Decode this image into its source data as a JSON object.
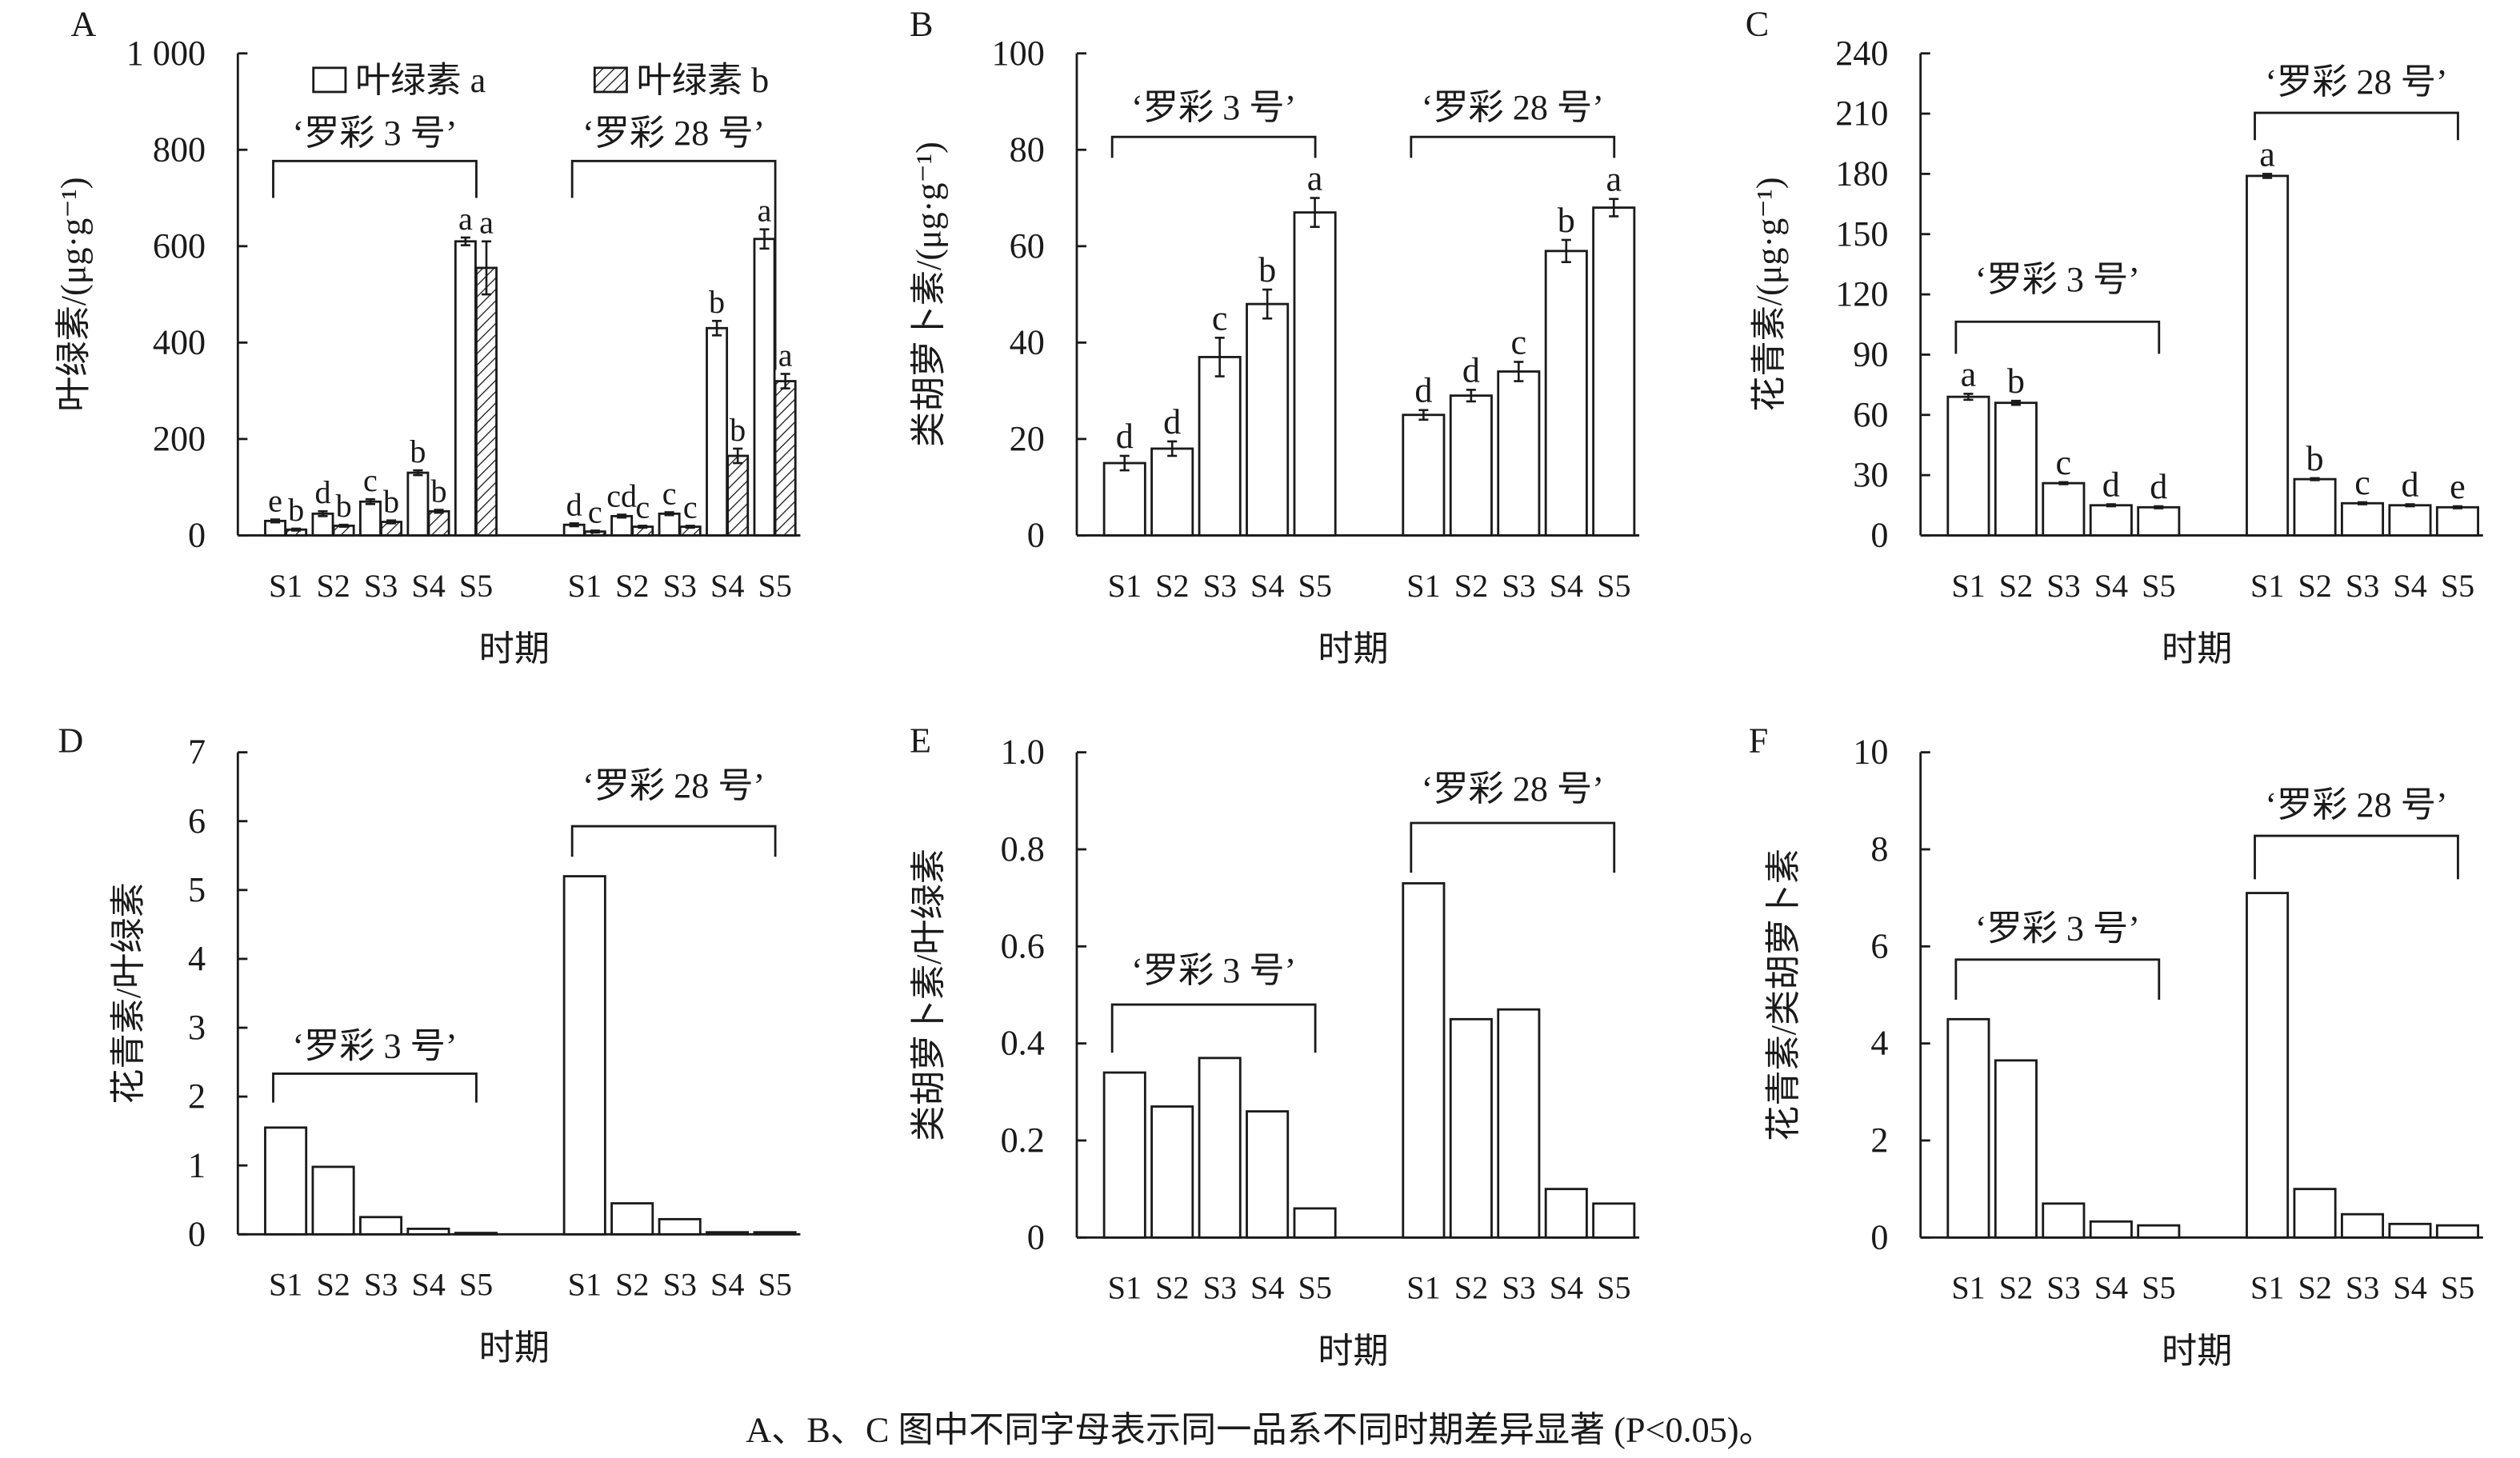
{
  "caption": "A、B、C 图中不同字母表示同一品系不同时期差异显著 (P<0.05)。",
  "chart_data": [
    {
      "panel": "A",
      "type": "bar",
      "ylabel": "叶绿素/(μg·g⁻¹)",
      "xlabel": "时期",
      "ylim": [
        0,
        1000
      ],
      "yticks": [
        0,
        200,
        400,
        600,
        800,
        1000
      ],
      "ytick_labels": [
        "0",
        "200",
        "400",
        "600",
        "800",
        "1 000"
      ],
      "categories": [
        "S1",
        "S2",
        "S3",
        "S4",
        "S5"
      ],
      "groups": [
        "‘罗彩 3 号’",
        "‘罗彩 28 号’"
      ],
      "legend": [
        "叶绿素 a",
        "叶绿素 b"
      ],
      "series": [
        {
          "name": "叶绿素 a",
          "values": [
            [
              30,
              45,
              70,
              130,
              610
            ],
            [
              22,
              40,
              45,
              430,
              615
            ]
          ],
          "errors": [
            [
              3,
              5,
              5,
              5,
              8
            ],
            [
              3,
              3,
              3,
              15,
              20
            ]
          ],
          "letters": [
            [
              "e",
              "d",
              "c",
              "b",
              "a"
            ],
            [
              "d",
              "cd",
              "c",
              "b",
              "a"
            ]
          ]
        },
        {
          "name": "叶绿素 b",
          "values": [
            [
              12,
              20,
              28,
              50,
              555
            ],
            [
              8,
              18,
              18,
              165,
              320
            ]
          ],
          "errors": [
            [
              2,
              2,
              3,
              3,
              55
            ],
            [
              2,
              2,
              2,
              15,
              15
            ]
          ],
          "letters": [
            [
              "b",
              "b",
              "b",
              "b",
              "a"
            ],
            [
              "c",
              "c",
              "c",
              "b",
              "a"
            ]
          ]
        }
      ]
    },
    {
      "panel": "B",
      "type": "bar",
      "ylabel": "类胡萝卜素/(μg·g⁻¹)",
      "xlabel": "时期",
      "ylim": [
        0,
        100
      ],
      "yticks": [
        0,
        20,
        40,
        60,
        80,
        100
      ],
      "ytick_labels": [
        "0",
        "20",
        "40",
        "60",
        "80",
        "100"
      ],
      "categories": [
        "S1",
        "S2",
        "S3",
        "S4",
        "S5"
      ],
      "groups": [
        "‘罗彩 3 号’",
        "‘罗彩 28 号’"
      ],
      "series": [
        {
          "name": "类胡萝卜素",
          "values": [
            [
              15,
              18,
              37,
              48,
              67
            ],
            [
              25,
              29,
              34,
              59,
              68
            ]
          ],
          "errors": [
            [
              1.5,
              1.5,
              4,
              3,
              3
            ],
            [
              1,
              1.2,
              2,
              2.3,
              1.8
            ]
          ],
          "letters": [
            [
              "d",
              "d",
              "c",
              "b",
              "a"
            ],
            [
              "d",
              "d",
              "c",
              "b",
              "a"
            ]
          ]
        }
      ]
    },
    {
      "panel": "C",
      "type": "bar",
      "ylabel": "花青素/(μg·g⁻¹)",
      "xlabel": "时期",
      "ylim": [
        0,
        240
      ],
      "yticks": [
        0,
        30,
        60,
        90,
        120,
        150,
        180,
        210,
        240
      ],
      "ytick_labels": [
        "0",
        "30",
        "60",
        "90",
        "120",
        "150",
        "180",
        "210",
        "240"
      ],
      "categories": [
        "S1",
        "S2",
        "S3",
        "S4",
        "S5"
      ],
      "groups": [
        "‘罗彩 3 号’",
        "‘罗彩 28 号’"
      ],
      "series": [
        {
          "name": "花青素",
          "values": [
            [
              69,
              66,
              26,
              15,
              14
            ],
            [
              179,
              28,
              16,
              15,
              14
            ]
          ],
          "errors": [
            [
              1.5,
              1,
              0.5,
              0.5,
              0.5
            ],
            [
              1,
              0.5,
              0.5,
              0.5,
              0.5
            ]
          ],
          "letters": [
            [
              "a",
              "b",
              "c",
              "d",
              "d"
            ],
            [
              "a",
              "b",
              "c",
              "d",
              "e"
            ]
          ]
        }
      ]
    },
    {
      "panel": "D",
      "type": "bar",
      "ylabel": "花青素/叶绿素",
      "xlabel": "时期",
      "ylim": [
        0,
        7
      ],
      "yticks": [
        0,
        1,
        2,
        3,
        4,
        5,
        6,
        7
      ],
      "ytick_labels": [
        "0",
        "1",
        "2",
        "3",
        "4",
        "5",
        "6",
        "7"
      ],
      "categories": [
        "S1",
        "S2",
        "S3",
        "S4",
        "S5"
      ],
      "groups": [
        "‘罗彩 3 号’",
        "‘罗彩 28 号’"
      ],
      "series": [
        {
          "name": "花青素/叶绿素",
          "values": [
            [
              1.55,
              0.98,
              0.25,
              0.08,
              0.02
            ],
            [
              5.2,
              0.45,
              0.22,
              0.03,
              0.03
            ]
          ]
        }
      ]
    },
    {
      "panel": "E",
      "type": "bar",
      "ylabel": "类胡萝卜素/叶绿素",
      "xlabel": "时期",
      "ylim": [
        0,
        1.0
      ],
      "yticks": [
        0,
        0.2,
        0.4,
        0.6,
        0.8,
        1.0
      ],
      "ytick_labels": [
        "0",
        "0.2",
        "0.4",
        "0.6",
        "0.8",
        "1.0"
      ],
      "categories": [
        "S1",
        "S2",
        "S3",
        "S4",
        "S5"
      ],
      "groups": [
        "‘罗彩 3 号’",
        "‘罗彩 28 号’"
      ],
      "series": [
        {
          "name": "类胡萝卜素/叶绿素",
          "values": [
            [
              0.34,
              0.27,
              0.37,
              0.26,
              0.06
            ],
            [
              0.73,
              0.45,
              0.47,
              0.1,
              0.07
            ]
          ]
        }
      ]
    },
    {
      "panel": "F",
      "type": "bar",
      "ylabel": "花青素/类胡萝卜素",
      "xlabel": "时期",
      "ylim": [
        0,
        10
      ],
      "yticks": [
        0,
        2,
        4,
        6,
        8,
        10
      ],
      "ytick_labels": [
        "0",
        "2",
        "4",
        "6",
        "8",
        "10"
      ],
      "categories": [
        "S1",
        "S2",
        "S3",
        "S4",
        "S5"
      ],
      "groups": [
        "‘罗彩 3 号’",
        "‘罗彩 28 号’"
      ],
      "series": [
        {
          "name": "花青素/类胡萝卜素",
          "values": [
            [
              4.5,
              3.65,
              0.7,
              0.33,
              0.25
            ],
            [
              7.1,
              1.0,
              0.48,
              0.28,
              0.25
            ]
          ]
        }
      ]
    }
  ]
}
